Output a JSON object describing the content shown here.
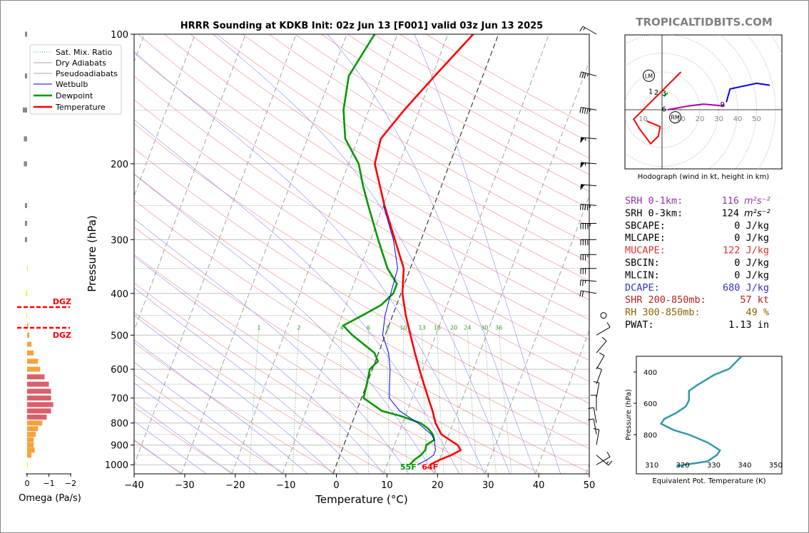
{
  "watermark": "TROPICALTIDBITS.COM",
  "chart_data": [
    {
      "type": "line",
      "title": "HRRR Sounding at KDKB Init: 02z Jun 13 [F001] valid 03z Jun 13 2025",
      "xlabel": "Temperature (°C)",
      "ylabel": "Pressure (hPa)",
      "xlim": [
        -40,
        50
      ],
      "ylim": [
        1050,
        100
      ],
      "y_scale": "log",
      "x_ticks": [
        -40,
        -30,
        -20,
        -10,
        0,
        10,
        20,
        30,
        40,
        50
      ],
      "x_tick_labels": [
        "−40",
        "−30",
        "−20",
        "−10",
        "0",
        "10",
        "20",
        "30",
        "40",
        "50"
      ],
      "y_ticks": [
        100,
        200,
        300,
        400,
        500,
        600,
        700,
        800,
        900,
        1000
      ],
      "y_tick_labels": [
        "100",
        "200",
        "300",
        "400",
        "500",
        "600",
        "700",
        "800",
        "900",
        "1000"
      ],
      "skew": "skew-T",
      "grid": true,
      "legend_position": "top-left",
      "legend": [
        "Sat. Mix. Ratio",
        "Dry Adiabats",
        "Pseudoadiabats",
        "Wetbulb",
        "Dewpoint",
        "Temperature"
      ],
      "mixing_ratio_labels": [
        "1",
        "2",
        "4",
        "6",
        "8",
        "10",
        "13",
        "16",
        "20",
        "24",
        "30",
        "36"
      ],
      "surface_labels": {
        "dewpoint": "55F",
        "temperature": "64F"
      },
      "series": [
        {
          "name": "Temperature",
          "color": "#ff0000",
          "points": [
            [
              1000,
              18.5
            ],
            [
              975,
              20
            ],
            [
              950,
              22
            ],
            [
              925,
              23.5
            ],
            [
              900,
              22.5
            ],
            [
              875,
              20.5
            ],
            [
              850,
              18.5
            ],
            [
              800,
              16.5
            ],
            [
              750,
              15
            ],
            [
              700,
              13.2
            ],
            [
              650,
              11.3
            ],
            [
              600,
              9.3
            ],
            [
              550,
              7.2
            ],
            [
              500,
              5
            ],
            [
              450,
              2.6
            ],
            [
              400,
              0.3
            ],
            [
              350,
              -1.3
            ],
            [
              300,
              -5.2
            ],
            [
              250,
              -9.8
            ],
            [
              200,
              -14.8
            ],
            [
              175,
              -15.5
            ],
            [
              150,
              -13
            ],
            [
              125,
              -9.5
            ],
            [
              100,
              -5
            ]
          ]
        },
        {
          "name": "Dewpoint",
          "color": "#009900",
          "points": [
            [
              1000,
              14.5
            ],
            [
              975,
              15
            ],
            [
              950,
              16
            ],
            [
              925,
              16.5
            ],
            [
              900,
              16.3
            ],
            [
              875,
              17.5
            ],
            [
              850,
              16.8
            ],
            [
              825,
              15.5
            ],
            [
              800,
              13.5
            ],
            [
              770,
              9
            ],
            [
              750,
              5
            ],
            [
              700,
              0.4
            ],
            [
              650,
              0
            ],
            [
              600,
              -0.5
            ],
            [
              575,
              0.5
            ],
            [
              550,
              -0.8
            ],
            [
              500,
              -6.5
            ],
            [
              475,
              -9
            ],
            [
              450,
              -6
            ],
            [
              425,
              -3
            ],
            [
              400,
              -1.5
            ],
            [
              380,
              -1.5
            ],
            [
              350,
              -4.5
            ],
            [
              300,
              -8.5
            ],
            [
              250,
              -13
            ],
            [
              225,
              -15.5
            ],
            [
              200,
              -18
            ],
            [
              175,
              -22.5
            ],
            [
              150,
              -25
            ],
            [
              125,
              -26.5
            ],
            [
              100,
              -24.5
            ]
          ]
        },
        {
          "name": "Wetbulb",
          "color": "#0000ff",
          "points": [
            [
              1000,
              16
            ],
            [
              975,
              17.5
            ],
            [
              950,
              18.5
            ],
            [
              925,
              18.5
            ],
            [
              900,
              18
            ],
            [
              875,
              17.5
            ],
            [
              850,
              16.5
            ],
            [
              800,
              13
            ],
            [
              750,
              8.5
            ],
            [
              700,
              5.5
            ],
            [
              650,
              4.5
            ],
            [
              600,
              3.5
            ],
            [
              550,
              2
            ],
            [
              500,
              -0.5
            ],
            [
              450,
              -1.5
            ],
            [
              400,
              -2
            ],
            [
              350,
              -2.5
            ],
            [
              300,
              -5.5
            ],
            [
              250,
              -10
            ]
          ]
        }
      ]
    },
    {
      "type": "line",
      "title": "Hodograph (wind in kt, height in km)",
      "rings": [
        "10",
        "20",
        "30",
        "40",
        "50"
      ],
      "markers": [
        "LM",
        "RM"
      ],
      "height_labels": [
        "1",
        "2",
        "3",
        "6",
        "9"
      ],
      "series": [
        {
          "name": "0-3 km",
          "color": "#ff0000",
          "points": [
            [
              10,
              20
            ],
            [
              -15,
              -5
            ],
            [
              -12,
              -10
            ],
            [
              -6,
              -18
            ],
            [
              -2,
              -14
            ],
            [
              -1,
              -9
            ],
            [
              -8,
              -6
            ]
          ]
        },
        {
          "name": "3-6 km",
          "color": "#00aa00",
          "points": [
            [
              1,
              7
            ],
            [
              3,
              9
            ]
          ]
        },
        {
          "name": "6-9 km",
          "color": "#aa00aa",
          "points": [
            [
              3,
              0
            ],
            [
              14,
              2
            ],
            [
              22,
              3
            ],
            [
              33,
              2
            ]
          ]
        },
        {
          "name": "9+ km",
          "color": "#0000ff",
          "points": [
            [
              34,
              4
            ],
            [
              36,
              11
            ],
            [
              50,
              14
            ],
            [
              57,
              13
            ]
          ]
        }
      ]
    },
    {
      "type": "line",
      "title": "",
      "xlabel": "Equivalent Pot. Temperature (K)",
      "ylabel": "Pressure (hPa)",
      "x_ticks": [
        "310",
        "320",
        "330",
        "340",
        "350"
      ],
      "y_ticks": [
        "400",
        "600",
        "800"
      ],
      "series": [
        {
          "name": "theta-e",
          "color": "#3399aa",
          "points": [
            [
              1000,
              318
            ],
            [
              970,
              328
            ],
            [
              930,
              331
            ],
            [
              900,
              332
            ],
            [
              850,
              328
            ],
            [
              800,
              322
            ],
            [
              770,
              317
            ],
            [
              730,
              313
            ],
            [
              700,
              314
            ],
            [
              660,
              318
            ],
            [
              620,
              321
            ],
            [
              580,
              322
            ],
            [
              520,
              322
            ],
            [
              480,
              325
            ],
            [
              420,
              330
            ],
            [
              380,
              335
            ],
            [
              320,
              338
            ],
            [
              300,
              339
            ]
          ]
        }
      ]
    },
    {
      "type": "bar",
      "title": "",
      "xlabel": "Omega (Pa/s)",
      "x_tick_labels": [
        "0",
        "−1",
        "−2"
      ],
      "annotations": [
        "DGZ",
        "DGZ"
      ],
      "levels": [
        100,
        125,
        150,
        175,
        200,
        250,
        275,
        300,
        350,
        400,
        450,
        475,
        500,
        525,
        550,
        575,
        600,
        625,
        650,
        675,
        700,
        725,
        750,
        775,
        800,
        825,
        850,
        875,
        900,
        925,
        950,
        1000
      ],
      "values": [
        0.1,
        0.1,
        0.2,
        0.15,
        0.15,
        0.1,
        0.1,
        0.1,
        0.0,
        0.05,
        0.03,
        -0.05,
        -0.1,
        -0.2,
        -0.3,
        -0.5,
        -0.6,
        -0.8,
        -1.0,
        -1.1,
        -1.1,
        -1.2,
        -1.1,
        -0.9,
        -0.7,
        -0.5,
        -0.4,
        -0.3,
        -0.3,
        -0.35,
        -0.2,
        0.0
      ]
    }
  ],
  "indices": [
    {
      "label": "SRH 0-1km:",
      "value": "116",
      "unit": "m²s⁻²",
      "color": "#9933aa"
    },
    {
      "label": "SRH 0-3km:",
      "value": "124",
      "unit": "m²s⁻²",
      "color": "#000000"
    },
    {
      "label": "SBCAPE:",
      "value": "0 J/kg",
      "unit": "",
      "color": "#000000"
    },
    {
      "label": "MLCAPE:",
      "value": "0 J/kg",
      "unit": "",
      "color": "#000000"
    },
    {
      "label": "MUCAPE:",
      "value": "122 J/kg",
      "unit": "",
      "color": "#dd3333"
    },
    {
      "label": "SBCIN:",
      "value": "0 J/kg",
      "unit": "",
      "color": "#000000"
    },
    {
      "label": "MLCIN:",
      "value": "0 J/kg",
      "unit": "",
      "color": "#000000"
    },
    {
      "label": "DCAPE:",
      "value": "680 J/kg",
      "unit": "",
      "color": "#3333cc"
    },
    {
      "label": "SHR 200-850mb:",
      "value": "57 kt",
      "unit": "",
      "color": "#bb2222"
    },
    {
      "label": "RH 300-850mb:",
      "value": "49 %",
      "unit": "",
      "color": "#886600"
    },
    {
      "label": "PWAT:",
      "value": "1.13 in",
      "unit": "",
      "color": "#000000"
    }
  ],
  "wind_barbs": [
    {
      "p": 100,
      "spd": 15,
      "dir": 300
    },
    {
      "p": 125,
      "spd": 35,
      "dir": 285
    },
    {
      "p": 150,
      "spd": 45,
      "dir": 280
    },
    {
      "p": 175,
      "spd": 55,
      "dir": 275
    },
    {
      "p": 200,
      "spd": 55,
      "dir": 275
    },
    {
      "p": 225,
      "spd": 50,
      "dir": 275
    },
    {
      "p": 250,
      "spd": 45,
      "dir": 275
    },
    {
      "p": 275,
      "spd": 45,
      "dir": 270
    },
    {
      "p": 300,
      "spd": 40,
      "dir": 270
    },
    {
      "p": 325,
      "spd": 35,
      "dir": 270
    },
    {
      "p": 350,
      "spd": 30,
      "dir": 270
    },
    {
      "p": 375,
      "spd": 25,
      "dir": 275
    },
    {
      "p": 400,
      "spd": 20,
      "dir": 280
    },
    {
      "p": 450,
      "spd": 0,
      "dir": 0
    },
    {
      "p": 500,
      "spd": 10,
      "dir": 60
    },
    {
      "p": 550,
      "spd": 10,
      "dir": 40
    },
    {
      "p": 600,
      "spd": 10,
      "dir": 30
    },
    {
      "p": 650,
      "spd": 10,
      "dir": 20
    },
    {
      "p": 700,
      "spd": 10,
      "dir": 10
    },
    {
      "p": 750,
      "spd": 10,
      "dir": 0
    },
    {
      "p": 800,
      "spd": 10,
      "dir": 350
    },
    {
      "p": 850,
      "spd": 10,
      "dir": 350
    },
    {
      "p": 900,
      "spd": 10,
      "dir": 10
    },
    {
      "p": 950,
      "spd": 15,
      "dir": 130
    },
    {
      "p": 1000,
      "spd": 10,
      "dir": 60
    }
  ]
}
